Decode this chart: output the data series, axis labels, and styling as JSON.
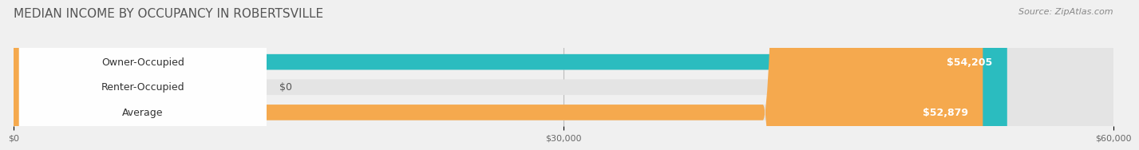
{
  "title": "MEDIAN INCOME BY OCCUPANCY IN ROBERTSVILLE",
  "source": "Source: ZipAtlas.com",
  "categories": [
    "Owner-Occupied",
    "Renter-Occupied",
    "Average"
  ],
  "values": [
    54205,
    0,
    52879
  ],
  "bar_colors": [
    "#2bbcbf",
    "#b89bc8",
    "#f5a94e"
  ],
  "bar_labels": [
    "$54,205",
    "$0",
    "$52,879"
  ],
  "xlim": [
    0,
    60000
  ],
  "xticks": [
    0,
    30000,
    60000
  ],
  "xtick_labels": [
    "$0",
    "$30,000",
    "$60,000"
  ],
  "background_color": "#f0f0f0",
  "bar_bg_color": "#e4e4e4",
  "title_fontsize": 11,
  "source_fontsize": 8,
  "label_fontsize": 9,
  "value_fontsize": 9
}
